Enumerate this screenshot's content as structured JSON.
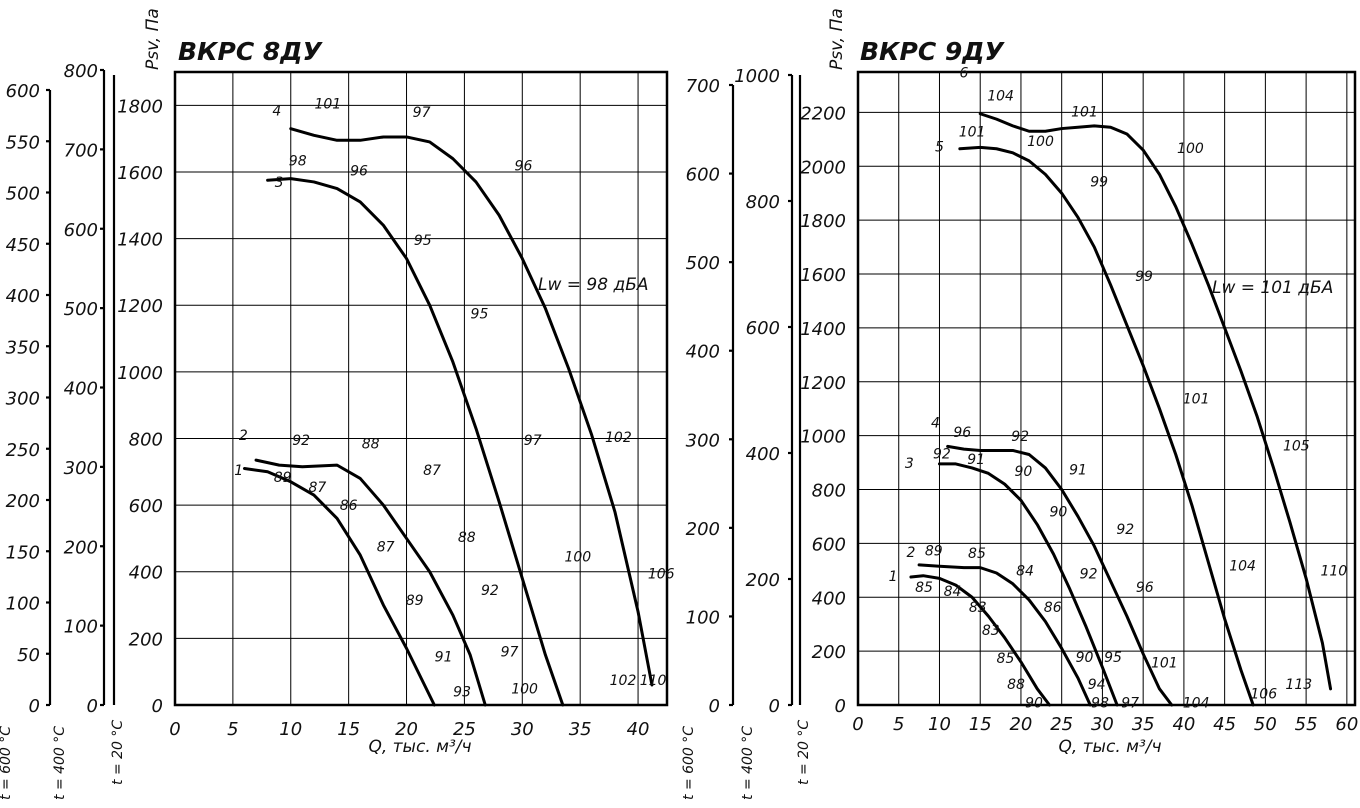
{
  "chart_data": [
    {
      "type": "line",
      "title": "ВКРС 8ДУ",
      "xlabel": "Q, тыс. м³/ч",
      "ylabel": "Psv, Па",
      "xlim": [
        0,
        42.5
      ],
      "ylim": [
        0,
        1900
      ],
      "x_ticks": [
        "0",
        "5",
        "10",
        "15",
        "20",
        "25",
        "30",
        "35",
        "40"
      ],
      "y_ticks": [
        "0",
        "200",
        "400",
        "600",
        "800",
        "1000",
        "1200",
        "1400",
        "1600",
        "1800"
      ],
      "annotation": "Lw = 98 дБА",
      "extra_scales": [
        {
          "label": "t = 600 °C",
          "ticks": [
            "0",
            "50",
            "100",
            "150",
            "200",
            "250",
            "300",
            "350",
            "400",
            "450",
            "500",
            "550",
            "600"
          ]
        },
        {
          "label": "t = 400 °C",
          "ticks": [
            "0",
            "100",
            "200",
            "300",
            "400",
            "500",
            "600",
            "700",
            "800"
          ]
        },
        {
          "label": "t = 20 °C",
          "ticks": []
        }
      ],
      "series": [
        {
          "name": "1",
          "x": [
            6,
            8,
            10,
            12,
            14,
            16,
            18,
            20,
            22.4
          ],
          "y": [
            710,
            700,
            670,
            630,
            560,
            450,
            300,
            170,
            0
          ]
        },
        {
          "name": "2",
          "x": [
            7,
            9,
            11,
            14,
            16,
            18,
            20,
            22,
            24,
            25.5,
            26.8
          ],
          "y": [
            735,
            720,
            715,
            720,
            680,
            600,
            500,
            400,
            270,
            150,
            0
          ]
        },
        {
          "name": "3",
          "x": [
            8,
            10,
            12,
            14,
            16,
            18,
            20,
            22,
            24,
            26,
            28,
            30,
            32,
            33.5
          ],
          "y": [
            1575,
            1580,
            1570,
            1550,
            1510,
            1440,
            1340,
            1200,
            1030,
            830,
            610,
            380,
            150,
            0
          ]
        },
        {
          "name": "4",
          "x": [
            10,
            12,
            14,
            16,
            18,
            20,
            22,
            24,
            26,
            28,
            30,
            32,
            34,
            36,
            38,
            40,
            41.2
          ],
          "y": [
            1730,
            1710,
            1695,
            1695,
            1705,
            1705,
            1690,
            1640,
            1570,
            1470,
            1340,
            1190,
            1010,
            810,
            580,
            280,
            60
          ]
        }
      ],
      "point_labels": [
        {
          "text": "1",
          "x": 5.5,
          "y": 690
        },
        {
          "text": "89",
          "x": 9.3,
          "y": 670
        },
        {
          "text": "87",
          "x": 12.3,
          "y": 640
        },
        {
          "text": "86",
          "x": 15,
          "y": 585
        },
        {
          "text": "87",
          "x": 18.2,
          "y": 460
        },
        {
          "text": "89",
          "x": 20.7,
          "y": 300
        },
        {
          "text": "91",
          "x": 23.2,
          "y": 130
        },
        {
          "text": "93",
          "x": 24.8,
          "y": 25
        },
        {
          "text": "2",
          "x": 5.9,
          "y": 795
        },
        {
          "text": "92",
          "x": 10.9,
          "y": 780
        },
        {
          "text": "88",
          "x": 16.9,
          "y": 770
        },
        {
          "text": "87",
          "x": 22.2,
          "y": 690
        },
        {
          "text": "88",
          "x": 25.2,
          "y": 490
        },
        {
          "text": "92",
          "x": 27.2,
          "y": 330
        },
        {
          "text": "97",
          "x": 28.9,
          "y": 145
        },
        {
          "text": "100",
          "x": 30.2,
          "y": 35
        },
        {
          "text": "3",
          "x": 9.0,
          "y": 1555
        },
        {
          "text": "98",
          "x": 10.6,
          "y": 1620
        },
        {
          "text": "96",
          "x": 15.9,
          "y": 1590
        },
        {
          "text": "95",
          "x": 21.4,
          "y": 1380
        },
        {
          "text": "95",
          "x": 26.3,
          "y": 1160
        },
        {
          "text": "97",
          "x": 30.9,
          "y": 780
        },
        {
          "text": "100",
          "x": 34.8,
          "y": 430
        },
        {
          "text": "102",
          "x": 38.7,
          "y": 60
        },
        {
          "text": "4",
          "x": 8.8,
          "y": 1770
        },
        {
          "text": "101",
          "x": 13.2,
          "y": 1790
        },
        {
          "text": "97",
          "x": 21.3,
          "y": 1765
        },
        {
          "text": "96",
          "x": 30.1,
          "y": 1605
        },
        {
          "text": "102",
          "x": 38.3,
          "y": 790
        },
        {
          "text": "106",
          "x": 42.0,
          "y": 380
        },
        {
          "text": "110",
          "x": 41.3,
          "y": 60
        }
      ]
    },
    {
      "type": "line",
      "title": "ВКРС 9ДУ",
      "xlabel": "Q, тыс. м³/ч",
      "ylabel": "Psv, Па",
      "xlim": [
        0,
        61
      ],
      "ylim": [
        0,
        2350
      ],
      "x_ticks": [
        "0",
        "5",
        "10",
        "15",
        "20",
        "25",
        "30",
        "35",
        "40",
        "45",
        "50",
        "55",
        "60"
      ],
      "y_ticks": [
        "0",
        "200",
        "400",
        "600",
        "800",
        "1000",
        "1200",
        "1400",
        "1600",
        "1800",
        "2000",
        "2200"
      ],
      "annotation": "Lw = 101 дБА",
      "extra_scales": [
        {
          "label": "t = 600 °C",
          "ticks": [
            "0",
            "100",
            "200",
            "300",
            "400",
            "500",
            "600",
            "700"
          ]
        },
        {
          "label": "t = 400 °C",
          "ticks": [
            "0",
            "200",
            "400",
            "600",
            "800",
            "1000"
          ]
        },
        {
          "label": "t = 20 °C",
          "ticks": []
        }
      ],
      "series": [
        {
          "name": "1",
          "x": [
            6.5,
            8,
            10,
            12,
            14,
            16,
            18,
            20,
            22,
            23.5
          ],
          "y": [
            475,
            480,
            470,
            445,
            400,
            330,
            250,
            160,
            60,
            0
          ]
        },
        {
          "name": "2",
          "x": [
            7.5,
            10,
            13,
            15,
            17,
            19,
            21,
            23,
            25,
            27,
            28.5
          ],
          "y": [
            520,
            515,
            510,
            510,
            490,
            450,
            390,
            310,
            210,
            100,
            0
          ]
        },
        {
          "name": "3",
          "x": [
            10,
            12,
            14,
            16,
            18,
            20,
            22,
            24,
            26,
            28,
            30,
            31.8
          ],
          "y": [
            895,
            895,
            880,
            860,
            820,
            760,
            670,
            560,
            430,
            290,
            140,
            0
          ]
        },
        {
          "name": "4",
          "x": [
            11,
            13,
            15,
            17,
            19,
            21,
            23,
            25,
            27,
            29,
            31,
            33,
            35,
            37,
            38.5
          ],
          "y": [
            960,
            950,
            945,
            945,
            945,
            930,
            880,
            800,
            700,
            590,
            460,
            330,
            190,
            60,
            0
          ]
        },
        {
          "name": "5",
          "x": [
            12.5,
            15,
            17,
            19,
            21,
            23,
            25,
            27,
            29,
            31,
            33,
            35,
            37,
            39,
            41,
            43,
            45,
            47,
            48.5
          ],
          "y": [
            2065,
            2070,
            2065,
            2050,
            2020,
            1970,
            1900,
            1810,
            1700,
            1560,
            1410,
            1260,
            1100,
            930,
            740,
            530,
            320,
            130,
            0
          ]
        },
        {
          "name": "6",
          "x": [
            15,
            17,
            19,
            21,
            23,
            25,
            27,
            29,
            31,
            33,
            35,
            37,
            39,
            41,
            43,
            45,
            47,
            49,
            51,
            53,
            55,
            57,
            58
          ],
          "y": [
            2195,
            2175,
            2150,
            2130,
            2130,
            2140,
            2145,
            2150,
            2145,
            2120,
            2060,
            1970,
            1850,
            1710,
            1560,
            1400,
            1240,
            1070,
            880,
            680,
            470,
            230,
            60
          ]
        }
      ],
      "point_labels": [
        {
          "text": "1",
          "x": 4.3,
          "y": 460
        },
        {
          "text": "85",
          "x": 8.1,
          "y": 420
        },
        {
          "text": "84",
          "x": 11.6,
          "y": 405
        },
        {
          "text": "83",
          "x": 14.7,
          "y": 345
        },
        {
          "text": "83",
          "x": 16.3,
          "y": 260
        },
        {
          "text": "85",
          "x": 18.1,
          "y": 155
        },
        {
          "text": "88",
          "x": 19.4,
          "y": 60
        },
        {
          "text": "90",
          "x": 21.6,
          "y": -10
        },
        {
          "text": "2",
          "x": 6.5,
          "y": 550
        },
        {
          "text": "89",
          "x": 9.3,
          "y": 555
        },
        {
          "text": "85",
          "x": 14.6,
          "y": 545
        },
        {
          "text": "84",
          "x": 20.5,
          "y": 480
        },
        {
          "text": "86",
          "x": 23.9,
          "y": 345
        },
        {
          "text": "90",
          "x": 27.8,
          "y": 160
        },
        {
          "text": "94",
          "x": 29.3,
          "y": 60
        },
        {
          "text": "98",
          "x": 29.7,
          "y": -10
        },
        {
          "text": "3",
          "x": 6.3,
          "y": 880
        },
        {
          "text": "92",
          "x": 10.3,
          "y": 915
        },
        {
          "text": "91",
          "x": 14.5,
          "y": 895
        },
        {
          "text": "90",
          "x": 20.3,
          "y": 850
        },
        {
          "text": "90",
          "x": 24.6,
          "y": 700
        },
        {
          "text": "92",
          "x": 28.3,
          "y": 470
        },
        {
          "text": "95",
          "x": 31.3,
          "y": 160
        },
        {
          "text": "97",
          "x": 33.4,
          "y": -10
        },
        {
          "text": "4",
          "x": 9.5,
          "y": 1030
        },
        {
          "text": "96",
          "x": 12.8,
          "y": 995
        },
        {
          "text": "92",
          "x": 19.9,
          "y": 980
        },
        {
          "text": "91",
          "x": 27.0,
          "y": 855
        },
        {
          "text": "92",
          "x": 32.8,
          "y": 635
        },
        {
          "text": "96",
          "x": 35.2,
          "y": 420
        },
        {
          "text": "101",
          "x": 37.6,
          "y": 140
        },
        {
          "text": "104",
          "x": 41.5,
          "y": -10
        },
        {
          "text": "5",
          "x": 10.0,
          "y": 2055
        },
        {
          "text": "101",
          "x": 14.0,
          "y": 2110
        },
        {
          "text": "100",
          "x": 22.4,
          "y": 2075
        },
        {
          "text": "99",
          "x": 29.6,
          "y": 1925
        },
        {
          "text": "99",
          "x": 35.1,
          "y": 1575
        },
        {
          "text": "101",
          "x": 41.5,
          "y": 1120
        },
        {
          "text": "104",
          "x": 47.2,
          "y": 500
        },
        {
          "text": "106",
          "x": 49.8,
          "y": 25
        },
        {
          "text": "6",
          "x": 13.0,
          "y": 2330
        },
        {
          "text": "104",
          "x": 17.5,
          "y": 2245
        },
        {
          "text": "101",
          "x": 27.8,
          "y": 2185
        },
        {
          "text": "100",
          "x": 40.8,
          "y": 2050
        },
        {
          "text": "105",
          "x": 53.8,
          "y": 945
        },
        {
          "text": "110",
          "x": 58.4,
          "y": 480
        },
        {
          "text": "113",
          "x": 54.1,
          "y": 60
        }
      ]
    }
  ]
}
